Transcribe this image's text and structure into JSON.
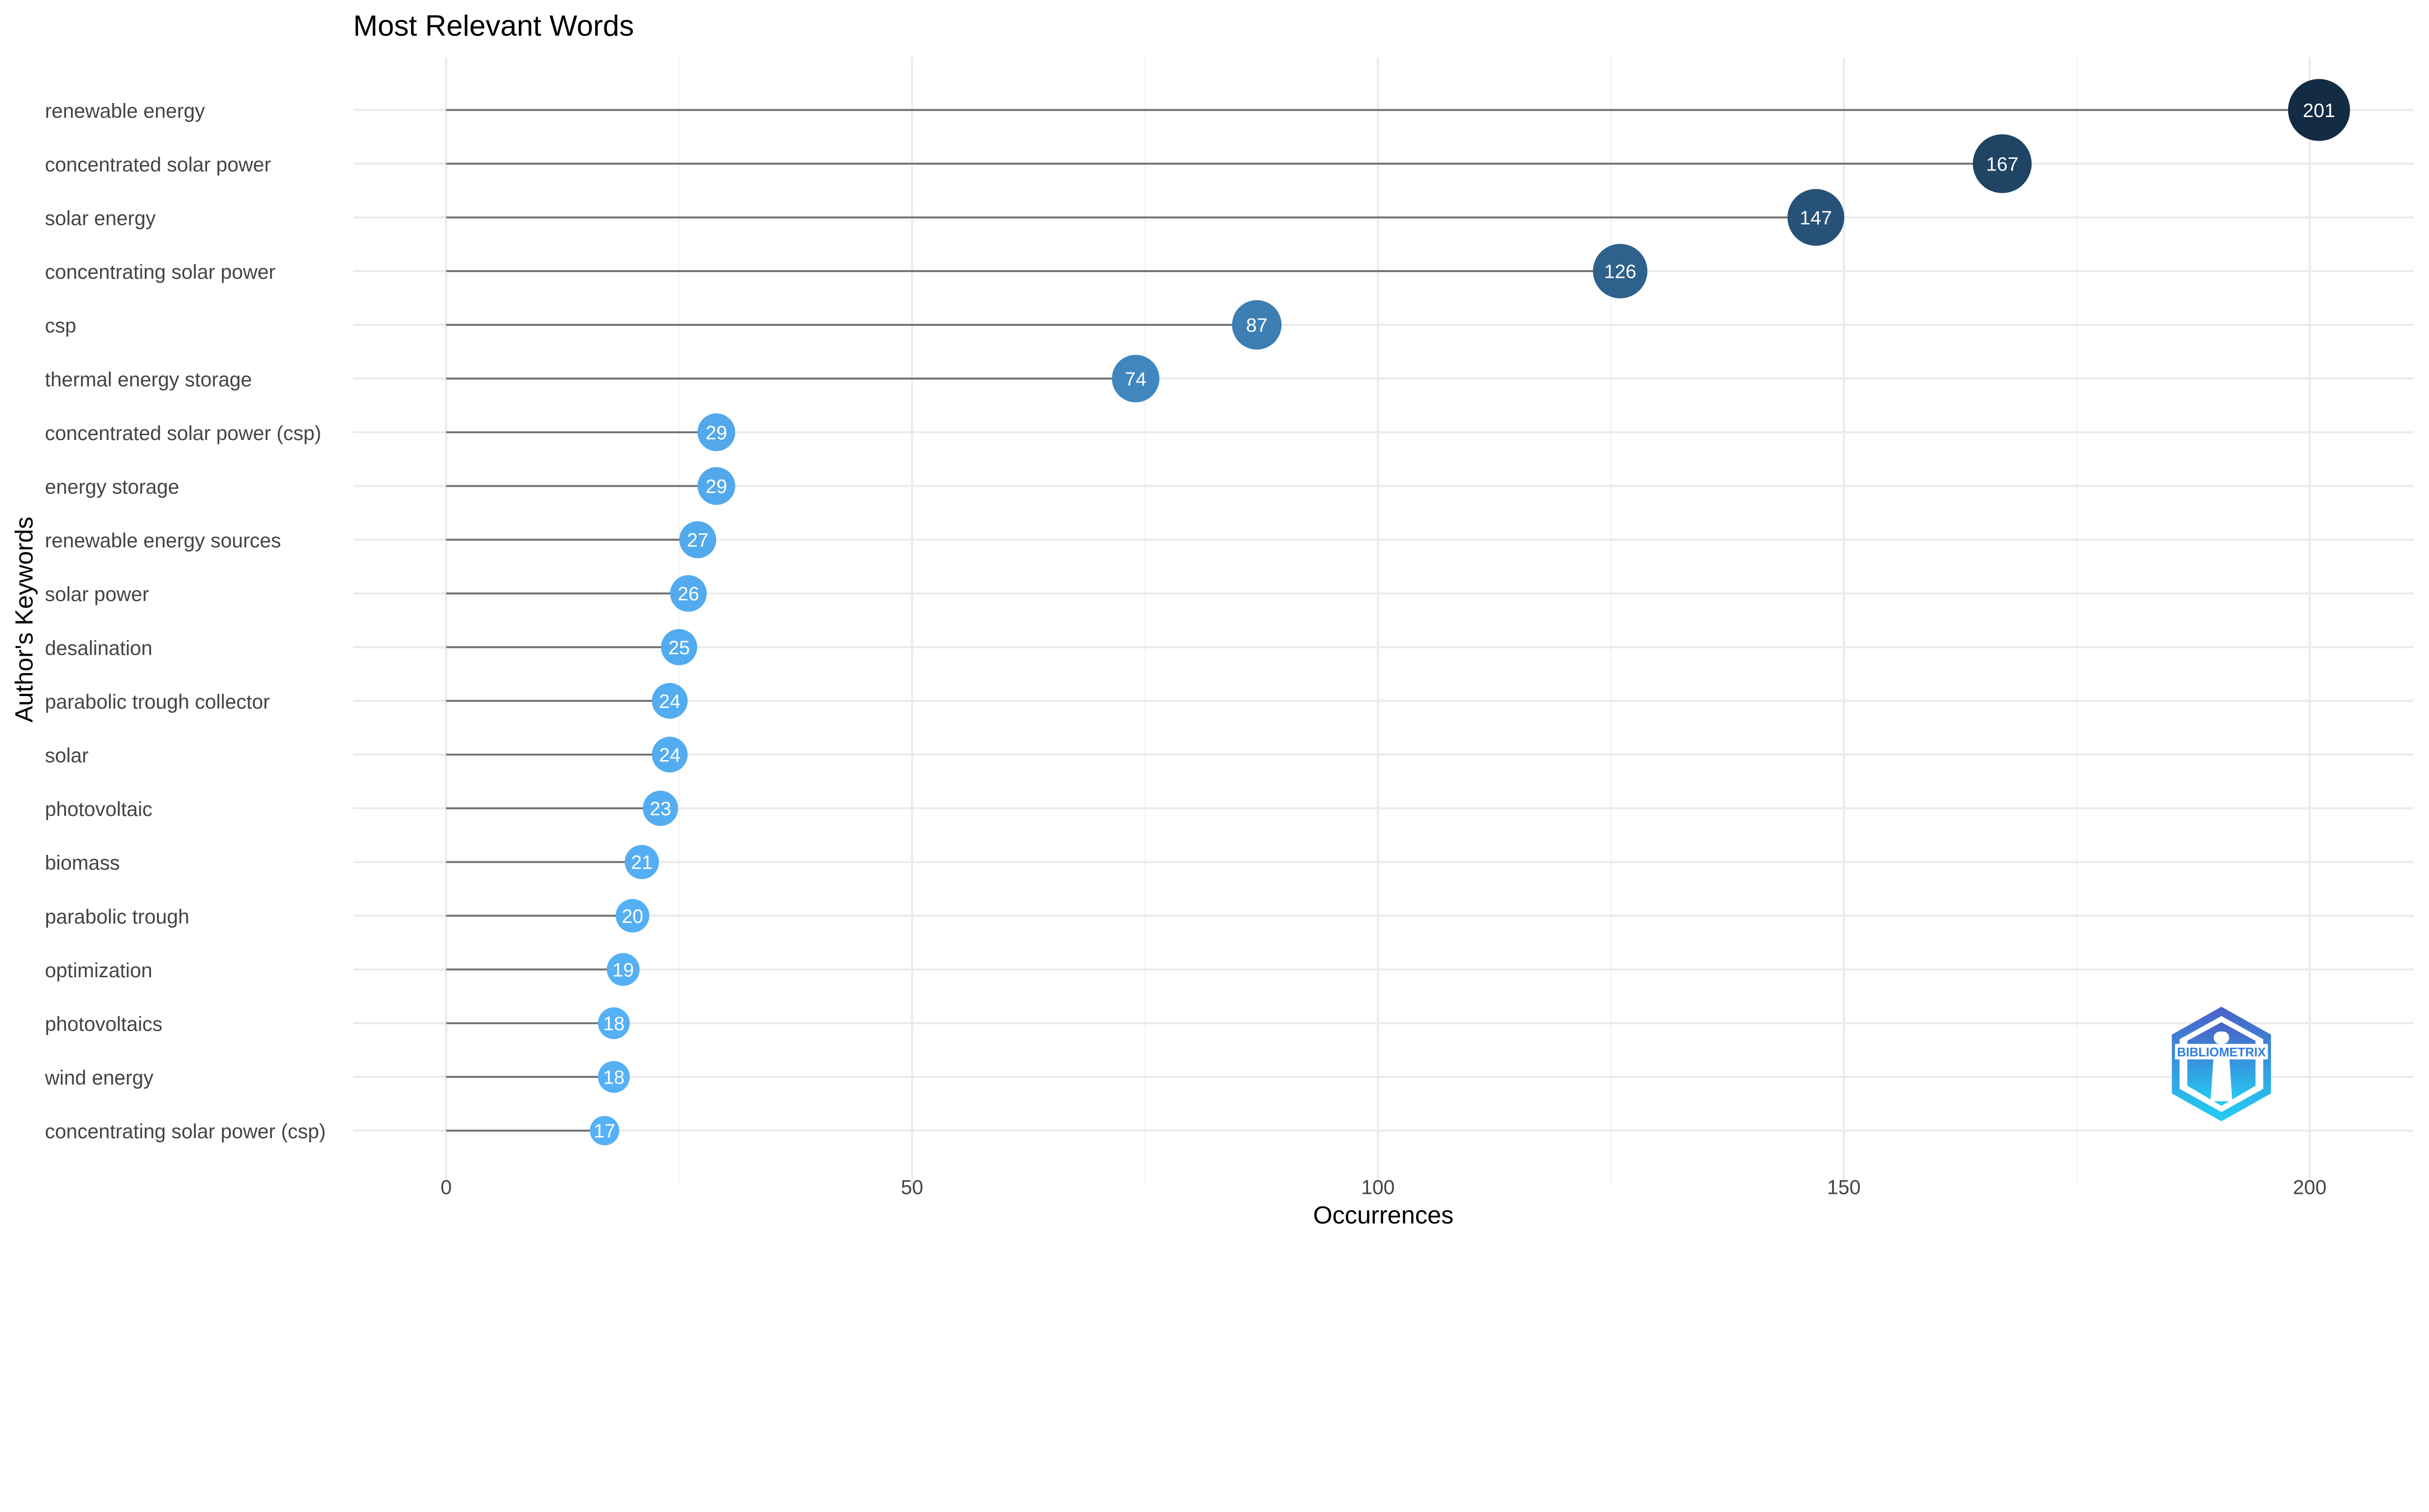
{
  "chart_data": {
    "type": "lollipop",
    "title": "Most Relevant Words",
    "xlabel": "Occurrences",
    "ylabel": "Author's Keywords",
    "xlim": [
      -10,
      211
    ],
    "xticks": [
      0,
      50,
      100,
      150,
      200
    ],
    "x_minor_grid": [
      25,
      75,
      125,
      175
    ],
    "grid": true,
    "color_low": "#56B1F7",
    "color_high": "#132B43",
    "stem_color": "#6E6E6E",
    "categories": [
      "renewable energy",
      "concentrated solar power",
      "solar energy",
      "concentrating solar power",
      "csp",
      "thermal energy storage",
      "concentrated solar power (csp)",
      "energy storage",
      "renewable energy sources",
      "solar power",
      "desalination",
      "parabolic trough collector",
      "solar",
      "photovoltaic",
      "biomass",
      "parabolic trough",
      "optimization",
      "photovoltaics",
      "wind energy",
      "concentrating solar power (csp)"
    ],
    "values": [
      201,
      167,
      147,
      126,
      87,
      74,
      29,
      29,
      27,
      26,
      25,
      24,
      24,
      23,
      21,
      20,
      19,
      18,
      18,
      17
    ]
  },
  "logo": {
    "text": "BIBLIOMETRIX"
  }
}
